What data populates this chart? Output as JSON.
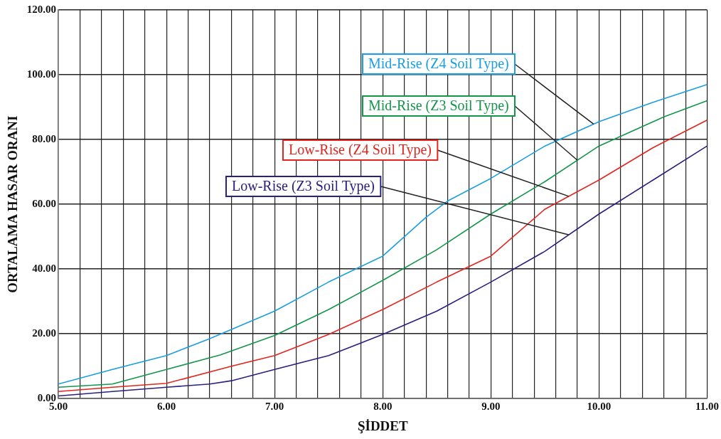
{
  "chart_data": {
    "type": "line",
    "xlabel": "ŞİDDET",
    "ylabel": "ORTALAMA HASAR ORANI",
    "xlim": [
      5,
      11
    ],
    "xticks": [
      {
        "value": 5,
        "label": "5.00"
      },
      {
        "value": 5.2,
        "label": null
      },
      {
        "value": 5.4,
        "label": null
      },
      {
        "value": 5.6,
        "label": null
      },
      {
        "value": 5.8,
        "label": null
      },
      {
        "value": 6,
        "label": "6.00"
      },
      {
        "value": 6.2,
        "label": null
      },
      {
        "value": 6.4,
        "label": null
      },
      {
        "value": 6.6,
        "label": null
      },
      {
        "value": 6.8,
        "label": null
      },
      {
        "value": 7,
        "label": "7.00"
      },
      {
        "value": 7.2,
        "label": null
      },
      {
        "value": 7.4,
        "label": null
      },
      {
        "value": 7.6,
        "label": null
      },
      {
        "value": 7.8,
        "label": null
      },
      {
        "value": 8,
        "label": "8.00"
      },
      {
        "value": 8.2,
        "label": null
      },
      {
        "value": 8.4,
        "label": null
      },
      {
        "value": 8.6,
        "label": null
      },
      {
        "value": 8.8,
        "label": null
      },
      {
        "value": 9,
        "label": "9.00"
      },
      {
        "value": 9.2,
        "label": null
      },
      {
        "value": 9.4,
        "label": null
      },
      {
        "value": 9.6,
        "label": null
      },
      {
        "value": 9.8,
        "label": null
      },
      {
        "value": 10,
        "label": "10.00"
      },
      {
        "value": 10.2,
        "label": null
      },
      {
        "value": 10.4,
        "label": null
      },
      {
        "value": 10.6,
        "label": null
      },
      {
        "value": 10.8,
        "label": null
      },
      {
        "value": 11,
        "label": "11.00"
      }
    ],
    "ylim": [
      0,
      120
    ],
    "yticks": [
      {
        "value": 0,
        "label": "0.00"
      },
      {
        "value": 20,
        "label": "20.00"
      },
      {
        "value": 40,
        "label": "40.00"
      },
      {
        "value": 60,
        "label": "60.00"
      },
      {
        "value": 80,
        "label": "80.00"
      },
      {
        "value": 100,
        "label": "100.00"
      },
      {
        "value": 120,
        "label": "120.00"
      }
    ],
    "grid": true,
    "marker": "none",
    "line_style": "solid",
    "legend": false,
    "series": [
      {
        "name": "Mid-Rise (Z4 Soil Type)",
        "color": "#1a9ee0",
        "x": [
          5,
          5.5,
          6,
          6.4,
          7,
          7.5,
          8,
          8.4,
          8.6,
          9,
          9.5,
          10,
          10.5,
          11
        ],
        "values": [
          4.5,
          9,
          13.3,
          18.5,
          27,
          36,
          44,
          56,
          61,
          68,
          78,
          85.5,
          91.5,
          97
        ]
      },
      {
        "name": "Mid-Rise (Z3 Soil Type)",
        "color": "#14964a",
        "x": [
          5,
          5.5,
          6,
          6.5,
          7,
          7.5,
          8,
          8.5,
          9,
          9.5,
          10,
          10.6,
          11
        ],
        "values": [
          3.5,
          4.5,
          9,
          13.5,
          19.5,
          27.5,
          36.5,
          46,
          57,
          67,
          78,
          87,
          92
        ]
      },
      {
        "name": "Low-Rise (Z4 Soil Type)",
        "color": "#e2261e",
        "x": [
          5,
          5.5,
          6,
          6.6,
          7,
          7.5,
          8,
          8.5,
          9,
          9.5,
          10,
          10.5,
          11
        ],
        "values": [
          2.2,
          3.5,
          4.7,
          10,
          13.3,
          19.8,
          27.5,
          36,
          44,
          58.5,
          67.5,
          77.5,
          86
        ]
      },
      {
        "name": "Low-Rise (Z3 Soil Type)",
        "color": "#2a2080",
        "x": [
          5,
          5.5,
          6,
          6.4,
          6.6,
          7,
          7.5,
          8,
          8.5,
          9,
          9.5,
          10,
          10.5,
          11
        ],
        "values": [
          0.8,
          2.2,
          3.5,
          4.5,
          5.5,
          9,
          13.3,
          19.8,
          27,
          36,
          45.5,
          57,
          67.5,
          78
        ]
      }
    ]
  }
}
